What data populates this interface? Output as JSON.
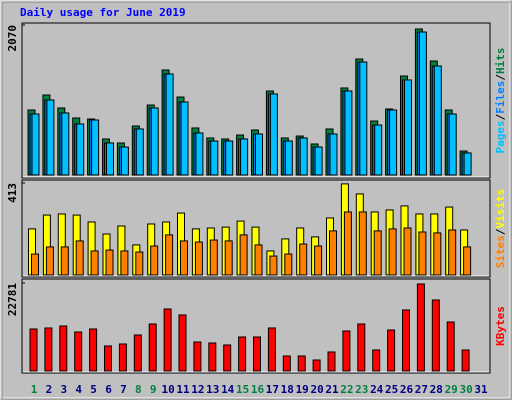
{
  "chart_data": [
    {
      "type": "bar",
      "title": "Daily usage for June 2019",
      "series": [
        {
          "name": "Hits",
          "color": "#008040",
          "values": [
            897,
            1104,
            925,
            787,
            773,
            497,
            442,
            676,
            966,
            1449,
            1076,
            649,
            511,
            497,
            552,
            621,
            1159,
            511,
            538,
            428,
            635,
            1201,
            1601,
            745,
            911,
            1366,
            2015,
            1573,
            897,
            331,
            0
          ]
        },
        {
          "name": "Files",
          "color": "#0080ff",
          "values": [
            842,
            1035,
            856,
            704,
            759,
            442,
            386,
            635,
            925,
            1394,
            1007,
            580,
            469,
            469,
            497,
            566,
            1118,
            469,
            511,
            386,
            566,
            1159,
            1559,
            690,
            897,
            1311,
            1973,
            1504,
            842,
            304,
            0
          ]
        },
        {
          "name": "Pages",
          "color": "#00c0ff",
          "values": [
            842,
            1035,
            856,
            704,
            759,
            442,
            386,
            635,
            925,
            1394,
            1007,
            580,
            469,
            469,
            497,
            566,
            1118,
            469,
            511,
            386,
            566,
            1159,
            1559,
            690,
            897,
            1311,
            1973,
            1504,
            842,
            304,
            0
          ]
        }
      ],
      "legend_separator": "/",
      "ylim": [
        0,
        2070
      ],
      "yticks": [
        2070
      ]
    },
    {
      "type": "bar",
      "series": [
        {
          "name": "Visits",
          "color": "#ffff00",
          "values": [
            207,
            269,
            274,
            269,
            238,
            184,
            220,
            135,
            229,
            238,
            278,
            207,
            211,
            215,
            242,
            215,
            108,
            162,
            211,
            171,
            256,
            409,
            364,
            283,
            292,
            310,
            274,
            274,
            305,
            202,
            0
          ]
        },
        {
          "name": "Sites",
          "color": "#ff8000",
          "values": [
            94,
            126,
            126,
            153,
            108,
            112,
            108,
            103,
            130,
            180,
            153,
            148,
            157,
            153,
            180,
            135,
            85,
            94,
            139,
            130,
            198,
            283,
            283,
            198,
            207,
            211,
            193,
            189,
            202,
            126,
            0
          ]
        }
      ],
      "legend_separator": "/",
      "ylim": [
        0,
        413
      ],
      "yticks": [
        413
      ]
    },
    {
      "type": "bar",
      "series": [
        {
          "name": "KBytes",
          "color": "#ff0000",
          "values": [
            10878,
            11137,
            11655,
            10101,
            10878,
            6475,
            6993,
            9324,
            12173,
            16058,
            14504,
            7511,
            7252,
            6734,
            8806,
            8806,
            11137,
            3885,
            3885,
            2849,
            4921,
            10360,
            12173,
            5439,
            10619,
            15799,
            22533,
            18389,
            12691,
            5439,
            0
          ]
        }
      ],
      "ylim": [
        0,
        22781
      ],
      "yticks": [
        22781
      ],
      "categories": [
        "1",
        "2",
        "3",
        "4",
        "5",
        "6",
        "7",
        "8",
        "9",
        "10",
        "11",
        "12",
        "13",
        "14",
        "15",
        "16",
        "17",
        "18",
        "19",
        "20",
        "21",
        "22",
        "23",
        "24",
        "25",
        "26",
        "27",
        "28",
        "29",
        "30",
        "31"
      ],
      "category_colors": [
        "#008040",
        "#000080",
        "#000080",
        "#000080",
        "#000080",
        "#000080",
        "#000080",
        "#008040",
        "#008040",
        "#000080",
        "#000080",
        "#000080",
        "#000080",
        "#000080",
        "#008040",
        "#008040",
        "#000080",
        "#000080",
        "#000080",
        "#000080",
        "#000080",
        "#008040",
        "#008040",
        "#000080",
        "#000080",
        "#000080",
        "#000080",
        "#000080",
        "#008040",
        "#008040",
        "#000080"
      ]
    }
  ]
}
